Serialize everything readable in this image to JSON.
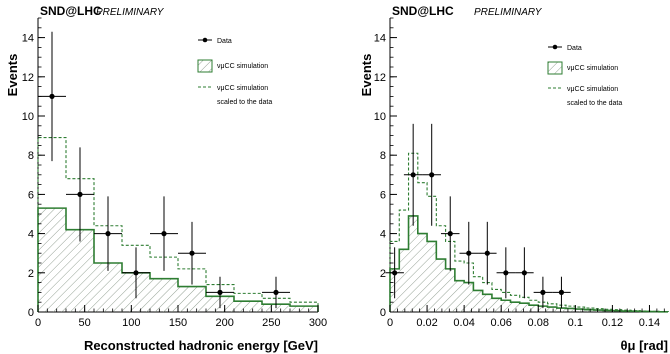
{
  "chart_data": [
    {
      "type": "histogram",
      "header": "SND@LHC",
      "header_sub": "PRELIMINARY",
      "xlabel": "Reconstructed hadronic energy [GeV]",
      "ylabel": "Events",
      "xlim": [
        0,
        300
      ],
      "ylim": [
        0,
        15
      ],
      "xticks": [
        "0",
        "50",
        "100",
        "150",
        "200",
        "250",
        "300"
      ],
      "yticks": [
        "0",
        "2",
        "4",
        "6",
        "8",
        "10",
        "12",
        "14"
      ],
      "bin_edges": [
        0,
        30,
        60,
        90,
        120,
        150,
        180,
        210,
        240,
        270,
        300
      ],
      "series": [
        {
          "name": "νμCC simulation",
          "style": "filled-hatched",
          "color": "#2e7d32",
          "values": [
            5.3,
            4.2,
            2.5,
            2.0,
            1.7,
            1.3,
            0.8,
            0.55,
            0.4,
            0.3
          ]
        },
        {
          "name": "νμCC simulation scaled to the data",
          "style": "dashed",
          "color": "#2e7d32",
          "values": [
            8.9,
            6.8,
            4.4,
            3.4,
            2.8,
            2.2,
            1.4,
            0.95,
            0.7,
            0.5
          ]
        }
      ],
      "data_points": {
        "name": "Data",
        "x": [
          15,
          45,
          75,
          105,
          135,
          165,
          195,
          255
        ],
        "y": [
          11,
          6,
          4,
          2,
          4,
          3,
          1,
          1
        ],
        "yerr_low": [
          3.3,
          2.4,
          1.9,
          1.3,
          1.9,
          1.6,
          0.8,
          0.8
        ],
        "yerr_high": [
          3.3,
          2.4,
          1.9,
          1.3,
          1.9,
          1.6,
          0.8,
          0.8
        ],
        "xerr": 15
      },
      "legend": {
        "entries": [
          {
            "label": "Data",
            "kind": "marker"
          },
          {
            "label": "νμCC simulation",
            "kind": "hatched"
          },
          {
            "label": "νμCC simulation",
            "kind": "dashed"
          },
          {
            "label": "scaled to the data",
            "kind": "none"
          }
        ]
      }
    },
    {
      "type": "histogram",
      "header": "SND@LHC",
      "header_sub": "PRELIMINARY",
      "xlabel": "θμ [rad]",
      "ylabel": "Events",
      "xlim": [
        0,
        0.15
      ],
      "ylim": [
        0,
        15
      ],
      "xticks": [
        "0",
        "0.02",
        "0.04",
        "0.06",
        "0.08",
        "0.1",
        "0.12",
        "0.14"
      ],
      "yticks": [
        "0",
        "2",
        "4",
        "6",
        "8",
        "10",
        "12",
        "14"
      ],
      "bin_edges": [
        0,
        0.005,
        0.01,
        0.015,
        0.02,
        0.025,
        0.03,
        0.035,
        0.04,
        0.045,
        0.05,
        0.055,
        0.06,
        0.065,
        0.07,
        0.075,
        0.08,
        0.085,
        0.09,
        0.095,
        0.1,
        0.105,
        0.11,
        0.115,
        0.12,
        0.125,
        0.13,
        0.135,
        0.14,
        0.145,
        0.15
      ],
      "series": [
        {
          "name": "νμCC simulation",
          "style": "filled-hatched",
          "color": "#2e7d32",
          "values": [
            2.2,
            3.2,
            4.9,
            4.0,
            3.6,
            2.7,
            2.2,
            1.6,
            1.5,
            1.1,
            0.9,
            0.7,
            0.6,
            0.5,
            0.45,
            0.35,
            0.3,
            0.25,
            0.2,
            0.18,
            0.15,
            0.12,
            0.1,
            0.08,
            0.07,
            0.05,
            0.04,
            0.03,
            0.02,
            0.01
          ]
        },
        {
          "name": "νμCC simulation scaled to the data",
          "style": "dashed",
          "color": "#2e7d32",
          "values": [
            3.6,
            5.2,
            8.1,
            6.6,
            5.9,
            4.4,
            3.6,
            2.6,
            2.5,
            1.8,
            1.5,
            1.15,
            1.0,
            0.85,
            0.75,
            0.6,
            0.5,
            0.42,
            0.35,
            0.3,
            0.25,
            0.2,
            0.17,
            0.14,
            0.12,
            0.09,
            0.07,
            0.05,
            0.03,
            0.02
          ]
        }
      ],
      "data_points": {
        "name": "Data",
        "x": [
          0.0025,
          0.0125,
          0.0225,
          0.0325,
          0.0425,
          0.0525,
          0.0625,
          0.0725,
          0.0825,
          0.0925
        ],
        "y": [
          2,
          7,
          7,
          4,
          3,
          3,
          2,
          2,
          1,
          1
        ],
        "yerr_low": [
          1.3,
          2.6,
          2.6,
          1.9,
          1.6,
          1.6,
          1.3,
          1.3,
          0.8,
          0.8
        ],
        "yerr_high": [
          1.3,
          2.6,
          2.6,
          1.9,
          1.6,
          1.6,
          1.3,
          1.3,
          0.8,
          0.8
        ],
        "xerr": 0.005
      },
      "legend": {
        "entries": [
          {
            "label": "Data",
            "kind": "marker"
          },
          {
            "label": "νμCC simulation",
            "kind": "hatched"
          },
          {
            "label": "νμCC simulation",
            "kind": "dashed"
          },
          {
            "label": "scaled to the data",
            "kind": "none"
          }
        ]
      }
    }
  ]
}
